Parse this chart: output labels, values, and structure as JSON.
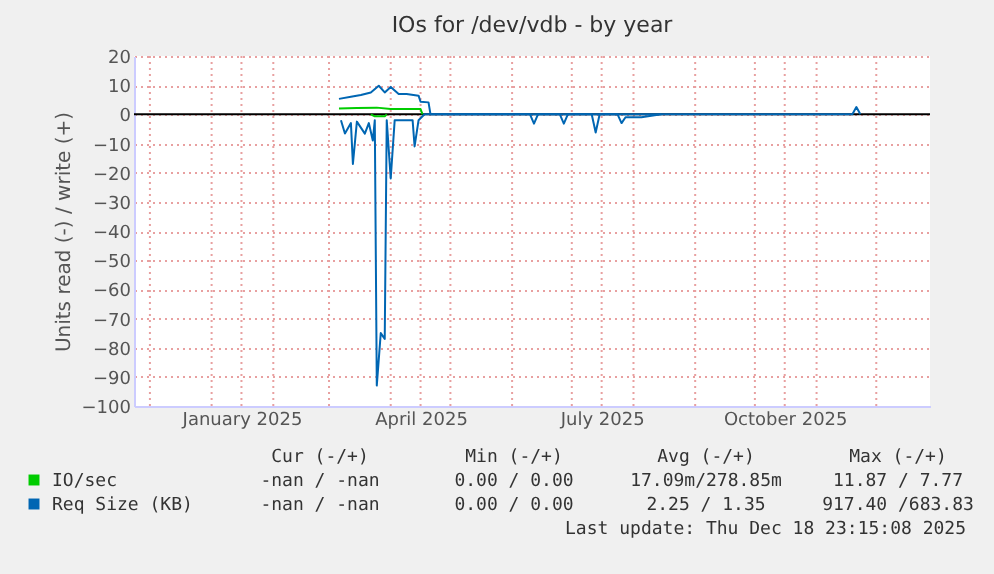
{
  "chart_data": {
    "type": "line",
    "title": "IOs for /dev/vdb - by year",
    "ylabel": "Units read (-) / write (+)",
    "xlim": [
      "2024-11-23",
      "2025-12-28"
    ],
    "xticks": [
      {
        "value": "2024-12-01",
        "label": null
      },
      {
        "value": "2025-01-01",
        "label": null
      },
      {
        "value": "2025-02-01",
        "label": null
      },
      {
        "value": "2025-03-01",
        "label": null
      },
      {
        "value": "2025-04-01",
        "label": null
      },
      {
        "value": "2025-05-01",
        "label": null
      },
      {
        "value": "2025-06-01",
        "label": null
      },
      {
        "value": "2025-07-01",
        "label": null
      },
      {
        "value": "2025-08-01",
        "label": null
      },
      {
        "value": "2025-09-01",
        "label": null
      },
      {
        "value": "2025-10-01",
        "label": null
      },
      {
        "value": "2025-11-01",
        "label": null
      },
      {
        "value": "2025-12-01",
        "label": null
      },
      {
        "value": "2025-01-16",
        "label": "January 2025"
      },
      {
        "value": "2025-04-16",
        "label": "April 2025"
      },
      {
        "value": "2025-07-16",
        "label": "July 2025"
      },
      {
        "value": "2025-10-16",
        "label": "October 2025"
      }
    ],
    "ylim": [
      -100,
      20
    ],
    "yticks": [
      -100,
      -90,
      -80,
      -70,
      -60,
      -50,
      -40,
      -30,
      -20,
      -10,
      0,
      10,
      20
    ],
    "grid": true,
    "legend": "bottom",
    "ref_lines": [
      {
        "axis": "y",
        "value": 0,
        "color": "#000000"
      }
    ],
    "series": [
      {
        "name": "IO/sec",
        "color": "#00cc00",
        "x": [
          "2025-03-06",
          "2025-03-15",
          "2025-03-25",
          "2025-04-01",
          "2025-04-16",
          "2025-04-17"
        ],
        "values": [
          2,
          2.2,
          2.3,
          1.8,
          1.8,
          0
        ]
      },
      {
        "color": "#00cc00",
        "x": [
          "2025-03-22",
          "2025-03-24",
          "2025-03-29",
          "2025-03-30"
        ],
        "values": [
          0,
          -0.7,
          -0.7,
          0
        ]
      },
      {
        "name": "Req Size (KB)",
        "color": "#0066b3",
        "x": [
          "2025-03-06",
          "2025-03-12",
          "2025-03-17",
          "2025-03-22",
          "2025-03-26",
          "2025-03-29",
          "2025-04-01",
          "2025-04-05",
          "2025-04-09",
          "2025-04-15",
          "2025-04-16",
          "2025-04-20",
          "2025-04-21",
          "2025-11-19",
          "2025-11-21",
          "2025-11-23"
        ],
        "values": [
          5.3,
          6,
          6.6,
          7.5,
          9.8,
          7.5,
          9.4,
          7,
          7,
          6.4,
          4.3,
          4.1,
          0,
          0,
          2.5,
          0
        ]
      },
      {
        "color": "#0066b3",
        "x": [
          "2025-03-07",
          "2025-03-09",
          "2025-03-12",
          "2025-03-13",
          "2025-03-15",
          "2025-03-19",
          "2025-03-21",
          "2025-03-23",
          "2025-03-24",
          "2025-03-25",
          "2025-03-27",
          "2025-03-29",
          "2025-03-30",
          "2025-04-01",
          "2025-04-03",
          "2025-04-07",
          "2025-04-12",
          "2025-04-13",
          "2025-04-15",
          "2025-04-18",
          "2025-06-10",
          "2025-06-12",
          "2025-06-14",
          "2025-06-25",
          "2025-06-27",
          "2025-06-29",
          "2025-07-11",
          "2025-07-13",
          "2025-07-15",
          "2025-07-24",
          "2025-07-26",
          "2025-07-28",
          "2025-08-05",
          "2025-08-15"
        ],
        "values": [
          -2,
          -6.6,
          -3,
          -17,
          -2.5,
          -6.6,
          -3,
          -9,
          -2,
          -93,
          -75,
          -77,
          -2,
          -22,
          -2,
          -2,
          -2,
          -11,
          -2,
          0,
          0,
          -3.2,
          0,
          0,
          -3.2,
          0,
          0,
          -6.2,
          0,
          0,
          -3,
          -1,
          -1,
          0
        ]
      }
    ],
    "annotations": [
      "Cur (-/+)",
      "Min (-/+)",
      "Avg (-/+)",
      "Max (-/+)",
      "-nan / -nan",
      "0.00 / 0.00",
      "17.09m/278.85m",
      "11.87 / 7.77",
      "-nan / -nan",
      "0.00 / 0.00",
      "2.25 / 1.35",
      "917.40 /683.83",
      "Last update: Thu Dec 18 23:15:08 2025"
    ]
  }
}
